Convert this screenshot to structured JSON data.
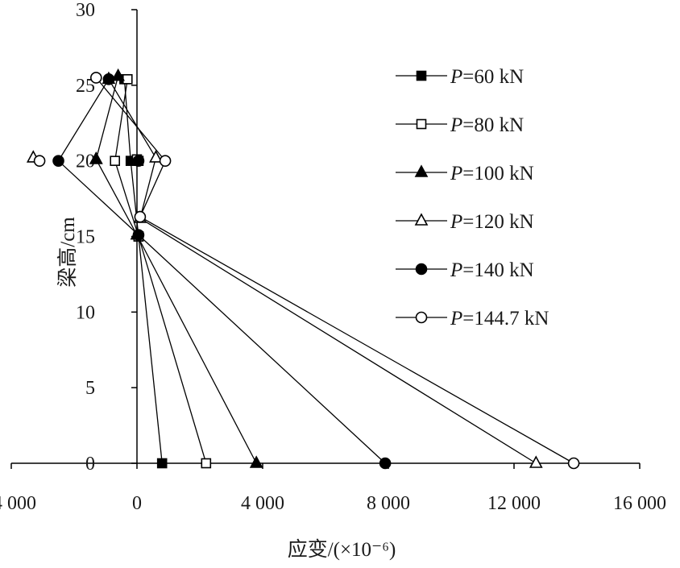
{
  "chart_data": {
    "type": "line",
    "title": "",
    "xlabel": "应变/(×10⁻⁶)",
    "ylabel": "梁高/cm",
    "xlim": [
      -4000,
      16000
    ],
    "ylim": [
      0,
      30
    ],
    "xticks": [
      -4000,
      0,
      4000,
      8000,
      12000,
      16000
    ],
    "xtick_labels": [
      "-4 000",
      "0",
      "4 000",
      "8 000",
      "12 000",
      "16 000"
    ],
    "yticks": [
      0,
      5,
      10,
      15,
      20,
      25,
      30
    ],
    "ytick_labels": [
      "0",
      "5",
      "10",
      "15",
      "20",
      "25",
      "30"
    ],
    "grid": false,
    "legend_position": "right",
    "series": [
      {
        "name": "P=60 kN",
        "marker": "filled-square",
        "x": [
          800,
          50,
          -200,
          -400
        ],
        "y": [
          0,
          15,
          20,
          25.4
        ]
      },
      {
        "name": "P=80 kN",
        "marker": "open-square",
        "x": [
          2200,
          50,
          -700,
          -300
        ],
        "y": [
          0,
          15,
          20,
          25.4
        ]
      },
      {
        "name": "P=100 kN",
        "marker": "filled-triangle",
        "x": [
          3800,
          0,
          -1300,
          -600
        ],
        "y": [
          0,
          15.1,
          20.1,
          25.6
        ]
      },
      {
        "name": "P=120 kN",
        "marker": "open-triangle",
        "x": [
          12700,
          100,
          600,
          -900
        ],
        "y": [
          0,
          16.2,
          20.2,
          25.4
        ]
      },
      {
        "name": "P=140 kN",
        "marker": "filled-circle",
        "x": [
          7900,
          50,
          -2500,
          -900
        ],
        "y": [
          0,
          15.1,
          20.0,
          25.4
        ]
      },
      {
        "name": "P=144.7 kN",
        "marker": "open-circle",
        "x": [
          13900,
          100,
          900,
          -1300
        ],
        "y": [
          0,
          16.3,
          20.0,
          25.5
        ]
      }
    ],
    "extra_markers": [
      {
        "series": "P=60 kN",
        "x": 50,
        "y": 20
      },
      {
        "series": "P=80 kN",
        "x": 0,
        "y": 20.1
      },
      {
        "series": "P=100 kN",
        "x": -1300,
        "y": 20.1
      },
      {
        "series": "P=120 kN",
        "x": -3300,
        "y": 20.2
      },
      {
        "series": "P=140 kN",
        "x": 50,
        "y": 20.0
      },
      {
        "series": "P=144.7 kN",
        "x": -3100,
        "y": 20.0
      }
    ]
  }
}
